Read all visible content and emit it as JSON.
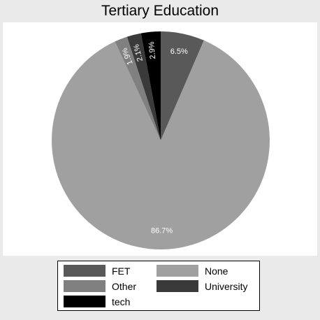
{
  "chart_data": {
    "type": "pie",
    "title": "Tertiary Education",
    "slices": [
      {
        "label": "FET",
        "value": 6.5,
        "display": "6.5%",
        "color": "#595959"
      },
      {
        "label": "None",
        "value": 86.7,
        "display": "86.7%",
        "color": "#a0a0a0"
      },
      {
        "label": "Other",
        "value": 1.9,
        "display": "1.9%",
        "color": "#808080"
      },
      {
        "label": "University",
        "value": 2.1,
        "display": "2.1%",
        "color": "#3a3a3a"
      },
      {
        "label": "tech",
        "value": 2.9,
        "display": "2.9%",
        "color": "#000000"
      }
    ],
    "start_angle_deg": 0,
    "direction": "clockwise",
    "legend": {
      "position": "bottom",
      "columns": 2
    }
  }
}
